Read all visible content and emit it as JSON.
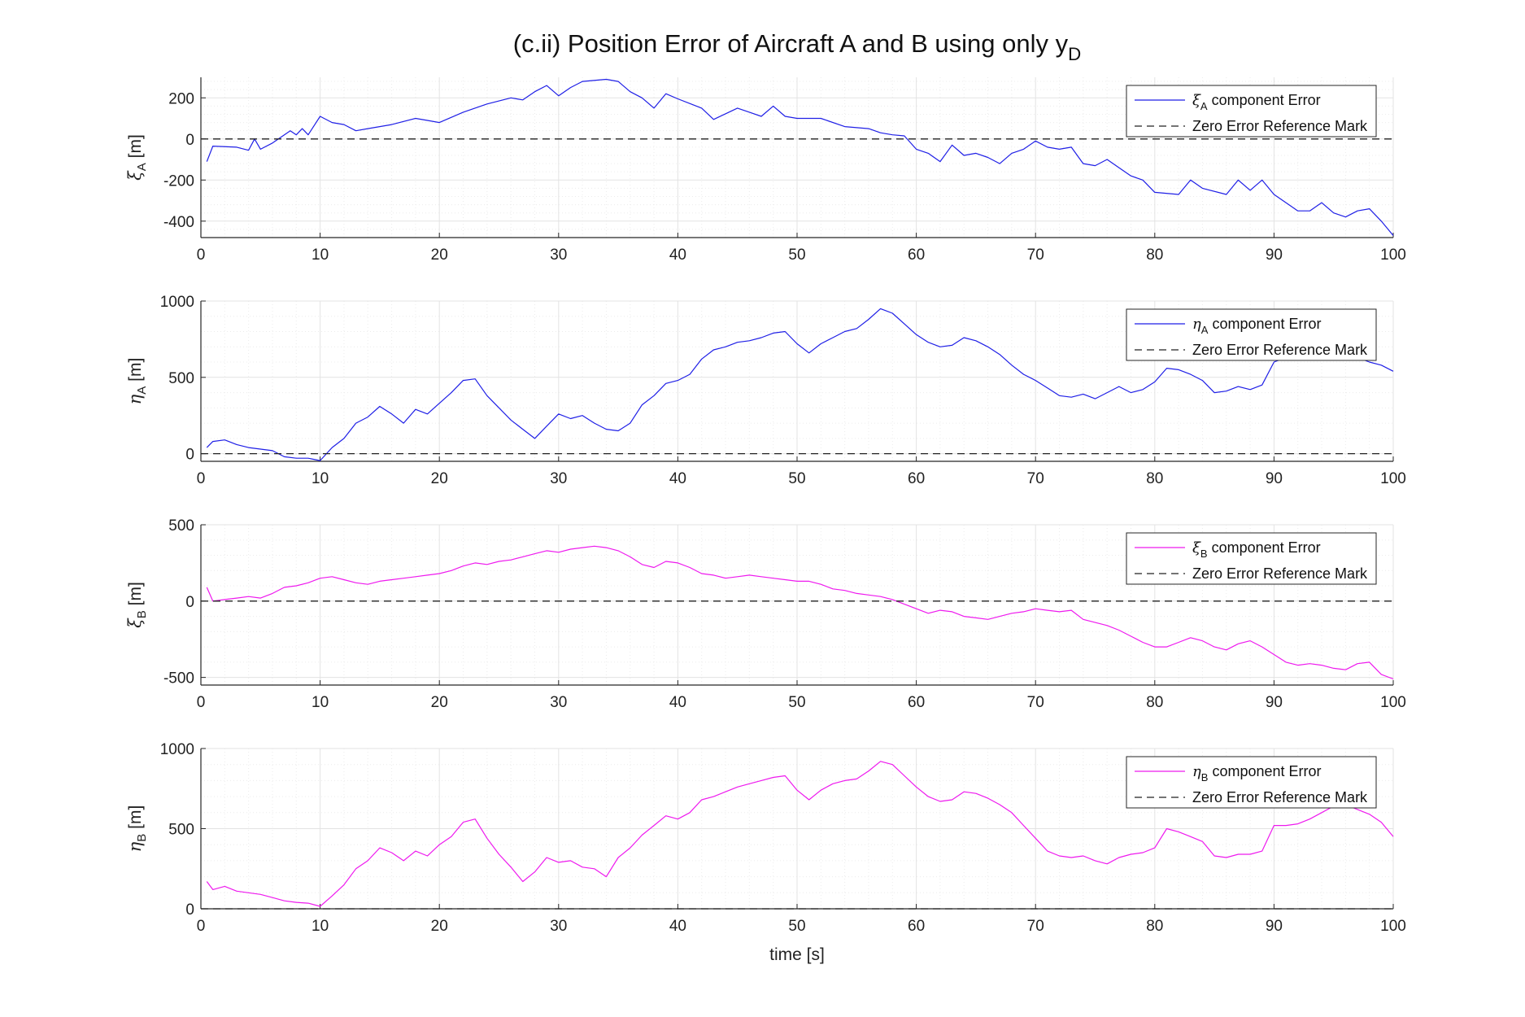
{
  "figure": {
    "title_main": "(c.ii) Position Error of Aircraft A and B using only y",
    "title_sub": "D",
    "xlabel": "time [s]"
  },
  "colors": {
    "blue": "#1f1fe6",
    "magenta": "#ee1aee",
    "reference": "#222222",
    "grid": "#e3e3e3"
  },
  "chart_data": [
    {
      "type": "line",
      "ylabel": {
        "symbol": "ξ",
        "sub": "A",
        "unit": "[m]"
      },
      "xlim": [
        0,
        100
      ],
      "ylim": [
        -480,
        300
      ],
      "xticks": [
        0,
        10,
        20,
        30,
        40,
        50,
        60,
        70,
        80,
        90,
        100
      ],
      "yticks": [
        -400,
        -200,
        0,
        200
      ],
      "grid": true,
      "legend_position": "top-right",
      "series": [
        {
          "name": "ξA component Error",
          "name_symbol": "ξ",
          "name_sub": "A",
          "name_rest": " component Error",
          "color": "#1f1fe6",
          "dash": "solid",
          "x": [
            0.5,
            1,
            3,
            4,
            4.5,
            5,
            6,
            7.5,
            8,
            8.5,
            9,
            10,
            11,
            12,
            13,
            14,
            16,
            18,
            19,
            20,
            22,
            24,
            26,
            27,
            28,
            29,
            30,
            31,
            32,
            34,
            35,
            36,
            37,
            38,
            39,
            40,
            42,
            43,
            45,
            46,
            47,
            48,
            49,
            50,
            52,
            54,
            56,
            57,
            58,
            59,
            60,
            61,
            62,
            63,
            64,
            65,
            66,
            67,
            68,
            69,
            70,
            71,
            72,
            73,
            74,
            75,
            76,
            77,
            78,
            79,
            80,
            82,
            83,
            84,
            86,
            87,
            88,
            89,
            90,
            92,
            93,
            94,
            95,
            96,
            97,
            98,
            99,
            100
          ],
          "y": [
            -110,
            -35,
            -40,
            -55,
            0,
            -50,
            -20,
            40,
            20,
            50,
            20,
            110,
            80,
            70,
            40,
            50,
            70,
            100,
            90,
            80,
            130,
            170,
            200,
            190,
            230,
            260,
            210,
            250,
            280,
            290,
            280,
            230,
            200,
            150,
            220,
            195,
            150,
            95,
            150,
            130,
            110,
            160,
            110,
            100,
            100,
            60,
            50,
            30,
            20,
            15,
            -50,
            -70,
            -110,
            -30,
            -80,
            -70,
            -90,
            -120,
            -70,
            -50,
            -10,
            -40,
            -50,
            -40,
            -120,
            -130,
            -100,
            -140,
            -180,
            -200,
            -260,
            -270,
            -200,
            -240,
            -270,
            -200,
            -250,
            -200,
            -270,
            -350,
            -350,
            -310,
            -360,
            -380,
            -350,
            -340,
            -400,
            -470
          ]
        },
        {
          "name": "Zero Error Reference Mark",
          "color": "#222222",
          "dash": "dashed",
          "x": [
            0,
            100
          ],
          "y": [
            0,
            0
          ]
        }
      ]
    },
    {
      "type": "line",
      "ylabel": {
        "symbol": "η",
        "sub": "A",
        "unit": "[m]"
      },
      "xlim": [
        0,
        100
      ],
      "ylim": [
        -50,
        1000
      ],
      "xticks": [
        0,
        10,
        20,
        30,
        40,
        50,
        60,
        70,
        80,
        90,
        100
      ],
      "yticks": [
        0,
        500,
        1000
      ],
      "grid": true,
      "legend_position": "top-right",
      "series": [
        {
          "name": "ηA component Error",
          "name_symbol": "η",
          "name_sub": "A",
          "name_rest": " component Error",
          "color": "#1f1fe6",
          "dash": "solid",
          "x": [
            0.5,
            1,
            2,
            3,
            4,
            5,
            6,
            7,
            8,
            9,
            10,
            11,
            12,
            13,
            14,
            15,
            16,
            17,
            18,
            19,
            20,
            21,
            22,
            23,
            24,
            25,
            26,
            27,
            28,
            29,
            30,
            31,
            32,
            33,
            34,
            35,
            36,
            37,
            38,
            39,
            40,
            41,
            42,
            43,
            44,
            45,
            46,
            47,
            48,
            49,
            50,
            51,
            52,
            53,
            54,
            55,
            56,
            57,
            58,
            59,
            60,
            61,
            62,
            63,
            64,
            65,
            66,
            67,
            68,
            69,
            70,
            71,
            72,
            73,
            74,
            75,
            76,
            77,
            78,
            79,
            80,
            81,
            82,
            83,
            84,
            85,
            86,
            87,
            88,
            89,
            90,
            91,
            92,
            93,
            94,
            95,
            96,
            97,
            98,
            99,
            100
          ],
          "y": [
            40,
            80,
            90,
            60,
            40,
            30,
            20,
            -20,
            -30,
            -30,
            -45,
            40,
            100,
            200,
            240,
            310,
            260,
            200,
            290,
            260,
            330,
            400,
            480,
            490,
            380,
            300,
            220,
            160,
            100,
            180,
            260,
            230,
            250,
            200,
            160,
            150,
            200,
            320,
            380,
            460,
            480,
            520,
            620,
            680,
            700,
            730,
            740,
            760,
            790,
            800,
            720,
            660,
            720,
            760,
            800,
            820,
            880,
            950,
            920,
            850,
            780,
            730,
            700,
            710,
            760,
            740,
            700,
            650,
            580,
            520,
            480,
            430,
            380,
            370,
            390,
            360,
            400,
            440,
            400,
            420,
            470,
            560,
            550,
            520,
            480,
            400,
            410,
            440,
            420,
            450,
            600,
            630,
            640,
            650,
            660,
            680,
            670,
            630,
            600,
            580,
            540
          ]
        },
        {
          "name": "Zero Error Reference Mark",
          "color": "#222222",
          "dash": "dashed",
          "x": [
            0,
            100
          ],
          "y": [
            0,
            0
          ]
        }
      ]
    },
    {
      "type": "line",
      "ylabel": {
        "symbol": "ξ",
        "sub": "B",
        "unit": "[m]"
      },
      "xlim": [
        0,
        100
      ],
      "ylim": [
        -550,
        500
      ],
      "xticks": [
        0,
        10,
        20,
        30,
        40,
        50,
        60,
        70,
        80,
        90,
        100
      ],
      "yticks": [
        -500,
        0,
        500
      ],
      "grid": true,
      "legend_position": "top-right",
      "series": [
        {
          "name": "ξB component Error",
          "name_symbol": "ξ",
          "name_sub": "B",
          "name_rest": " component Error",
          "color": "#ee1aee",
          "dash": "solid",
          "x": [
            0.5,
            1,
            2,
            3,
            4,
            5,
            6,
            7,
            8,
            9,
            10,
            11,
            12,
            13,
            14,
            15,
            16,
            17,
            18,
            19,
            20,
            21,
            22,
            23,
            24,
            25,
            26,
            27,
            28,
            29,
            30,
            31,
            32,
            33,
            34,
            35,
            36,
            37,
            38,
            39,
            40,
            41,
            42,
            43,
            44,
            45,
            46,
            47,
            48,
            49,
            50,
            51,
            52,
            53,
            54,
            55,
            56,
            57,
            58,
            59,
            60,
            61,
            62,
            63,
            64,
            65,
            66,
            67,
            68,
            69,
            70,
            71,
            72,
            73,
            74,
            75,
            76,
            77,
            78,
            79,
            80,
            81,
            82,
            83,
            84,
            85,
            86,
            87,
            88,
            89,
            90,
            91,
            92,
            93,
            94,
            95,
            96,
            97,
            98,
            99,
            100
          ],
          "y": [
            90,
            0,
            10,
            20,
            30,
            20,
            50,
            90,
            100,
            120,
            150,
            160,
            140,
            120,
            110,
            130,
            140,
            150,
            160,
            170,
            180,
            200,
            230,
            250,
            240,
            260,
            270,
            290,
            310,
            330,
            320,
            340,
            350,
            360,
            350,
            330,
            290,
            240,
            220,
            260,
            250,
            220,
            180,
            170,
            150,
            160,
            170,
            160,
            150,
            140,
            130,
            130,
            110,
            80,
            70,
            50,
            40,
            30,
            10,
            -20,
            -50,
            -80,
            -60,
            -70,
            -100,
            -110,
            -120,
            -100,
            -80,
            -70,
            -50,
            -60,
            -70,
            -60,
            -120,
            -140,
            -160,
            -190,
            -230,
            -270,
            -300,
            -300,
            -270,
            -240,
            -260,
            -300,
            -320,
            -280,
            -260,
            -300,
            -350,
            -400,
            -420,
            -410,
            -420,
            -440,
            -450,
            -410,
            -400,
            -480,
            -510
          ]
        },
        {
          "name": "Zero Error Reference Mark",
          "color": "#222222",
          "dash": "dashed",
          "x": [
            0,
            100
          ],
          "y": [
            0,
            0
          ]
        }
      ]
    },
    {
      "type": "line",
      "ylabel": {
        "symbol": "η",
        "sub": "B",
        "unit": "[m]"
      },
      "xlim": [
        0,
        100
      ],
      "ylim": [
        0,
        1000
      ],
      "xticks": [
        0,
        10,
        20,
        30,
        40,
        50,
        60,
        70,
        80,
        90,
        100
      ],
      "yticks": [
        0,
        500,
        1000
      ],
      "grid": true,
      "legend_position": "top-right",
      "series": [
        {
          "name": "ηB component Error",
          "name_symbol": "η",
          "name_sub": "B",
          "name_rest": " component Error",
          "color": "#ee1aee",
          "dash": "solid",
          "x": [
            0.5,
            1,
            2,
            3,
            4,
            5,
            6,
            7,
            8,
            9,
            10,
            11,
            12,
            13,
            14,
            15,
            16,
            17,
            18,
            19,
            20,
            21,
            22,
            23,
            24,
            25,
            26,
            27,
            28,
            29,
            30,
            31,
            32,
            33,
            34,
            35,
            36,
            37,
            38,
            39,
            40,
            41,
            42,
            43,
            44,
            45,
            46,
            47,
            48,
            49,
            50,
            51,
            52,
            53,
            54,
            55,
            56,
            57,
            58,
            59,
            60,
            61,
            62,
            63,
            64,
            65,
            66,
            67,
            68,
            69,
            70,
            71,
            72,
            73,
            74,
            75,
            76,
            77,
            78,
            79,
            80,
            81,
            82,
            83,
            84,
            85,
            86,
            87,
            88,
            89,
            90,
            91,
            92,
            93,
            94,
            95,
            96,
            97,
            98,
            99,
            100
          ],
          "y": [
            170,
            120,
            140,
            110,
            100,
            90,
            70,
            50,
            40,
            35,
            15,
            80,
            150,
            250,
            300,
            380,
            350,
            300,
            360,
            330,
            400,
            450,
            540,
            560,
            440,
            340,
            260,
            170,
            230,
            320,
            290,
            300,
            260,
            250,
            200,
            320,
            380,
            460,
            520,
            580,
            560,
            600,
            680,
            700,
            730,
            760,
            780,
            800,
            820,
            830,
            740,
            680,
            740,
            780,
            800,
            810,
            860,
            920,
            900,
            830,
            760,
            700,
            670,
            680,
            730,
            720,
            690,
            650,
            600,
            520,
            440,
            360,
            330,
            320,
            330,
            300,
            280,
            320,
            340,
            350,
            380,
            500,
            480,
            450,
            420,
            330,
            320,
            340,
            340,
            360,
            520,
            520,
            530,
            560,
            600,
            640,
            650,
            620,
            590,
            540,
            450
          ]
        },
        {
          "name": "Zero Error Reference Mark",
          "color": "#222222",
          "dash": "dashed",
          "x": [
            0,
            100
          ],
          "y": [
            0,
            0
          ]
        }
      ]
    }
  ]
}
